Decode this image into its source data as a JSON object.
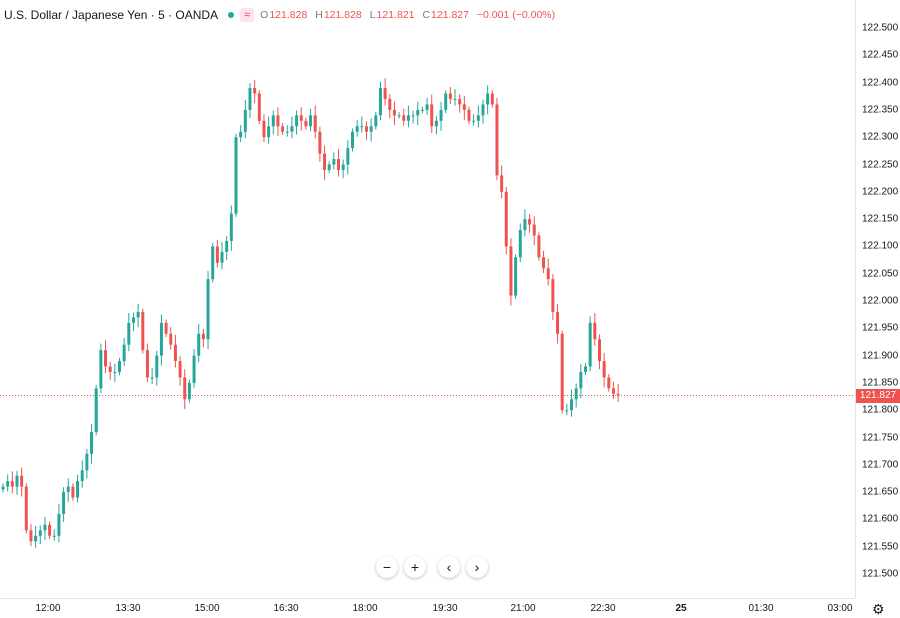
{
  "header": {
    "symbol": "U.S. Dollar / Japanese Yen · 5 · OANDA",
    "badge": "≈",
    "o_key": "O",
    "o_val": "121.828",
    "h_key": "H",
    "h_val": "121.828",
    "l_key": "L",
    "l_val": "121.821",
    "c_key": "C",
    "c_val": "121.827",
    "change": "−0.001 (−0.00%)"
  },
  "last_price": "121.827",
  "y_ticks": [
    "122.500",
    "122.450",
    "122.400",
    "122.350",
    "122.300",
    "122.250",
    "122.200",
    "122.150",
    "122.100",
    "122.050",
    "122.000",
    "121.950",
    "121.900",
    "121.850",
    "121.800",
    "121.750",
    "121.700",
    "121.650",
    "121.600",
    "121.550",
    "121.500"
  ],
  "x_ticks": [
    "12:00",
    "13:30",
    "15:00",
    "16:30",
    "18:00",
    "19:30",
    "21:00",
    "22:30",
    "25",
    "01:30",
    "03:00"
  ],
  "nav": {
    "zoom_out": "−",
    "zoom_in": "+",
    "prev": "‹",
    "next": "›"
  },
  "settings_icon": "⚙",
  "colors": {
    "up": "#26a69a",
    "down": "#ef5350",
    "grid": "#f0f3fa"
  },
  "chart_data": {
    "type": "candlestick",
    "ylim": [
      121.48,
      122.52
    ],
    "x_labels": [
      "12:00",
      "13:30",
      "15:00",
      "16:30",
      "18:00",
      "19:30",
      "21:00",
      "22:30",
      "25",
      "01:30",
      "03:00"
    ],
    "closes": [
      121.66,
      121.67,
      121.66,
      121.68,
      121.66,
      121.58,
      121.56,
      121.57,
      121.58,
      121.59,
      121.57,
      121.57,
      121.61,
      121.65,
      121.66,
      121.64,
      121.67,
      121.69,
      121.72,
      121.76,
      121.84,
      121.91,
      121.88,
      121.87,
      121.87,
      121.89,
      121.92,
      121.96,
      121.97,
      121.98,
      121.91,
      121.86,
      121.86,
      121.9,
      121.96,
      121.94,
      121.92,
      121.89,
      121.86,
      121.82,
      121.85,
      121.9,
      121.94,
      121.93,
      122.04,
      122.1,
      122.07,
      122.09,
      122.11,
      122.16,
      122.3,
      122.31,
      122.35,
      122.39,
      122.38,
      122.33,
      122.3,
      122.32,
      122.34,
      122.32,
      122.31,
      122.31,
      122.32,
      122.34,
      122.33,
      122.32,
      122.34,
      122.31,
      122.27,
      122.24,
      122.25,
      122.26,
      122.24,
      122.25,
      122.28,
      122.31,
      122.32,
      122.32,
      122.31,
      122.32,
      122.34,
      122.39,
      122.37,
      122.35,
      122.34,
      122.34,
      122.33,
      122.34,
      122.34,
      122.35,
      122.35,
      122.36,
      122.32,
      122.33,
      122.35,
      122.38,
      122.37,
      122.37,
      122.36,
      122.35,
      122.33,
      122.33,
      122.34,
      122.36,
      122.38,
      122.36,
      122.23,
      122.2,
      122.1,
      122.01,
      122.08,
      122.13,
      122.15,
      122.14,
      122.12,
      122.08,
      122.06,
      122.04,
      121.98,
      121.94,
      121.8,
      121.8,
      121.82,
      121.84,
      121.87,
      121.88,
      121.96,
      121.93,
      121.89,
      121.86,
      121.84,
      121.83,
      121.827
    ]
  }
}
